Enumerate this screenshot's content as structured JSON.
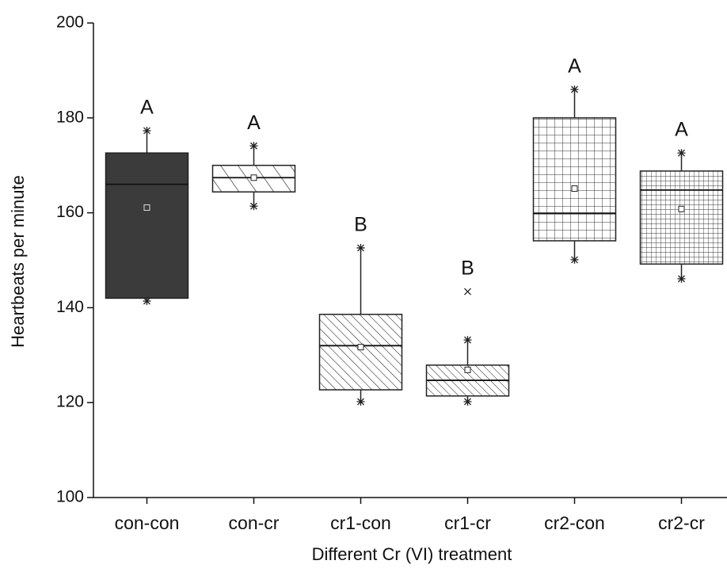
{
  "chart_data": {
    "type": "box",
    "xlabel": "Different Cr (VI) treatment",
    "ylabel": "Heartbeats per minute",
    "categories": [
      "con-con",
      "con-cr",
      "cr1-con",
      "cr1-cr",
      "cr2-con",
      "cr2-cr"
    ],
    "boxes": [
      {
        "whisker_low": 141.4,
        "q1": 142,
        "median": 166,
        "q3": 172.6,
        "whisker_high": 177.3,
        "mean": 161.1,
        "outliers": []
      },
      {
        "whisker_low": 161.4,
        "q1": 164.4,
        "median": 167.4,
        "q3": 170,
        "whisker_high": 174.1,
        "mean": 167.4,
        "outliers": []
      },
      {
        "whisker_low": 120.2,
        "q1": 122.7,
        "median": 132,
        "q3": 138.6,
        "whisker_high": 152.6,
        "mean": 131.7,
        "outliers": []
      },
      {
        "whisker_low": 120.2,
        "q1": 121.4,
        "median": 124.7,
        "q3": 127.9,
        "whisker_high": 133.2,
        "mean": 126.9,
        "outliers": [
          143.4
        ]
      },
      {
        "whisker_low": 150.1,
        "q1": 154.1,
        "median": 159.9,
        "q3": 180,
        "whisker_high": 186,
        "mean": 165.1,
        "outliers": []
      },
      {
        "whisker_low": 146.1,
        "q1": 149.2,
        "median": 164.8,
        "q3": 168.8,
        "whisker_high": 172.6,
        "mean": 160.8,
        "outliers": []
      }
    ],
    "annotations": [
      "A",
      "A",
      "B",
      "B",
      "A",
      "A"
    ],
    "ylim": [
      100,
      200
    ],
    "yticks": [
      100,
      120,
      140,
      160,
      180,
      200
    ]
  }
}
